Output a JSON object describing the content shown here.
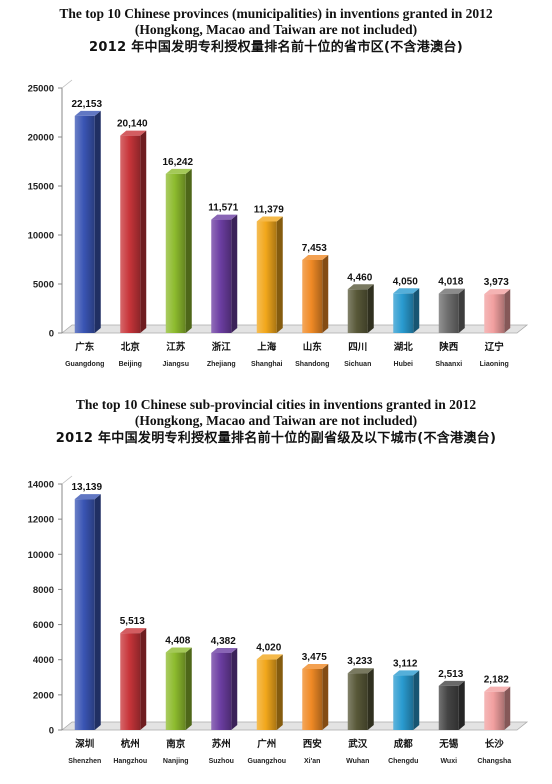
{
  "charts": [
    {
      "title_en_line1": "The top 10 Chinese provinces (municipalities) in inventions granted in 2012",
      "title_en_line2": "(Hongkong, Macao and Taiwan are not included)",
      "title_cn": "2012 年中国发明专利授权量排名前十位的省市区(不含港澳台)"
    },
    {
      "title_en_line1": "The top 10 Chinese sub-provincial cities in inventions granted in 2012",
      "title_en_line2": "(Hongkong, Macao and Taiwan are not included)",
      "title_cn": "2012 年中国发明专利授权量排名前十位的副省级及以下城市(不含港澳台)"
    }
  ],
  "chart_data": [
    {
      "type": "bar",
      "title": "The top 10 Chinese provinces (municipalities) in inventions granted in 2012",
      "categories_cn": [
        "广东",
        "北京",
        "江苏",
        "浙江",
        "上海",
        "山东",
        "四川",
        "湖北",
        "陕西",
        "辽宁"
      ],
      "categories": [
        "Guangdong",
        "Beijing",
        "Jiangsu",
        "Zhejiang",
        "Shanghai",
        "Shandong",
        "Sichuan",
        "Hubei",
        "Shaanxi",
        "Liaoning"
      ],
      "values": [
        22153,
        20140,
        16242,
        11571,
        11379,
        7453,
        4460,
        4050,
        4018,
        3973
      ],
      "labels": [
        "22,153",
        "20,140",
        "16,242",
        "11,571",
        "11,379",
        "7,453",
        "4,460",
        "4,050",
        "4,018",
        "3,973"
      ],
      "colors": [
        "#3a55b4",
        "#c8353a",
        "#8dbb2e",
        "#6c3ea2",
        "#f2a71b",
        "#f08a25",
        "#585838",
        "#2a9bd0",
        "#6e6e6e",
        "#f2a0a0"
      ],
      "ylim": [
        0,
        25000
      ],
      "yticks": [
        0,
        5000,
        10000,
        15000,
        20000,
        25000
      ],
      "grid": false,
      "legend": "none"
    },
    {
      "type": "bar",
      "title": "The top 10 Chinese sub-provincial cities in inventions granted in 2012",
      "categories_cn": [
        "深圳",
        "杭州",
        "南京",
        "苏州",
        "广州",
        "西安",
        "武汉",
        "成都",
        "无锡",
        "长沙"
      ],
      "categories": [
        "Shenzhen",
        "Hangzhou",
        "Nanjing",
        "Suzhou",
        "Guangzhou",
        "Xi'an",
        "Wuhan",
        "Chengdu",
        "Wuxi",
        "Changsha"
      ],
      "values": [
        13139,
        5513,
        4408,
        4382,
        4020,
        3475,
        3233,
        3112,
        2513,
        2182
      ],
      "labels": [
        "13,139",
        "5,513",
        "4,408",
        "4,382",
        "4,020",
        "3,475",
        "3,233",
        "3,112",
        "2,513",
        "2,182"
      ],
      "colors": [
        "#3a55b4",
        "#c8353a",
        "#8dbb2e",
        "#6c3ea2",
        "#f2a71b",
        "#f08a25",
        "#585838",
        "#2a9bd0",
        "#444444",
        "#f2a0a0"
      ],
      "ylim": [
        0,
        14000
      ],
      "yticks": [
        0,
        2000,
        4000,
        6000,
        8000,
        10000,
        12000,
        14000
      ],
      "grid": false,
      "legend": "none"
    }
  ]
}
